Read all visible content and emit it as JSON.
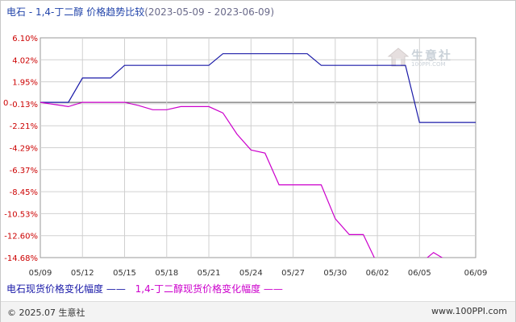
{
  "title_main": "电石 - 1,4-丁二醇 价格趋势比较",
  "title_range": "(2023-05-09 - 2023-06-09)",
  "watermark": {
    "text": "生意社",
    "url": "100PPI.COM"
  },
  "legend": {
    "series1": "电石现货价格变化幅度",
    "series2": "1,4-丁二醇现货价格变化幅度"
  },
  "footer": {
    "copyright": "© 2025.07 生意社",
    "site": "www.100PPI.com"
  },
  "colors": {
    "series1": "#1a1aa8",
    "series2": "#cc00cc",
    "grid": "#d0d0d0",
    "zero": "#555555"
  },
  "chart_data": {
    "type": "line",
    "ylim": [
      -14.68,
      6.1
    ],
    "y_ticks": [
      "6.10%",
      "4.02%",
      "1.95%",
      "-0.13%",
      "-2.21%",
      "-4.29%",
      "-6.37%",
      "-8.45%",
      "-10.53%",
      "-12.60%",
      "-14.68%"
    ],
    "y_zero_label": "0",
    "x_ticks": [
      "05/09",
      "05/12",
      "05/15",
      "05/18",
      "05/21",
      "05/24",
      "05/27",
      "05/30",
      "06/02",
      "06/05",
      "06/09"
    ],
    "x_tick_days": [
      0,
      3,
      6,
      9,
      12,
      15,
      18,
      21,
      24,
      27,
      31
    ],
    "grid": true,
    "legend_position": "bottom",
    "series": [
      {
        "name": "电石现货价格变化幅度",
        "days": [
          0,
          2,
          3,
          5,
          6,
          12,
          13,
          19,
          20,
          26,
          27,
          31
        ],
        "values": [
          0,
          0,
          2.3,
          2.3,
          3.5,
          3.5,
          4.6,
          4.6,
          3.5,
          3.5,
          -1.9,
          -1.9
        ]
      },
      {
        "name": "1,4-丁二醇现货价格变化幅度",
        "days": [
          0,
          2,
          3,
          4,
          6,
          7,
          8,
          9,
          10,
          11,
          12,
          13,
          14,
          15,
          16,
          17,
          18,
          19,
          20,
          21,
          22,
          23,
          24,
          25,
          26,
          27,
          28,
          29,
          30,
          31
        ],
        "values": [
          0,
          -0.4,
          0,
          0,
          0,
          -0.3,
          -0.7,
          -0.7,
          -0.4,
          -0.4,
          -0.4,
          -1.0,
          -3.0,
          -4.5,
          -4.8,
          -7.8,
          -7.8,
          -7.8,
          -7.8,
          -11.0,
          -12.5,
          -12.5,
          -15.3,
          -15.3,
          -15.3,
          -15.3,
          -14.2,
          -15.0,
          -16.5,
          -15.7
        ]
      }
    ]
  }
}
